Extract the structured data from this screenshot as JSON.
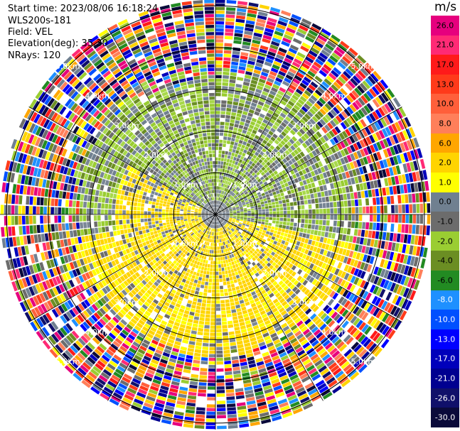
{
  "header": {
    "start_time": "Start time: 2023/08/06 16:18:24",
    "instrument": "WLS200s-181",
    "field": "Field: VEL",
    "elevation": "Elevation(deg): 35.30",
    "nrays": "NRays: 120"
  },
  "colorbar": {
    "unit": "m/s",
    "ticks": [
      "26.0",
      "21.0",
      "17.0",
      "13.0",
      "10.0",
      "8.0",
      "6.0",
      "2.0",
      "1.0",
      "0.0",
      "-1.0",
      "-2.0",
      "-4.0",
      "-6.0",
      "-8.0",
      "-10.0",
      "-13.0",
      "-17.0",
      "-21.0",
      "-26.0",
      "-30.0"
    ],
    "colors": [
      "#e6007e",
      "#ff2a75",
      "#ff1a1a",
      "#ff3a1a",
      "#ff5f3a",
      "#ff7f5a",
      "#ffa600",
      "#ffd400",
      "#ffff00",
      "#708090",
      "#6c6c6c",
      "#9acd32",
      "#6b8e23",
      "#228b22",
      "#1e90ff",
      "#0050ff",
      "#0000ff",
      "#0000bb",
      "#000090",
      "#10106a",
      "#0a0a3a"
    ]
  },
  "chart_data": {
    "type": "ppi",
    "field": "VEL",
    "unit": "m/s",
    "range_rings_km": [
      1.0,
      2.0,
      3.0,
      4.0,
      5.0
    ],
    "ring_labels": [
      "1.0km",
      "2.0km",
      "3.0km",
      "4.0km",
      "5.0km"
    ],
    "max_range_km": 5.0,
    "nrays": 120,
    "elevation_deg": 35.3,
    "value_range": [
      -30.0,
      26.0
    ],
    "vectors_valid_range_km": 3.0
  }
}
